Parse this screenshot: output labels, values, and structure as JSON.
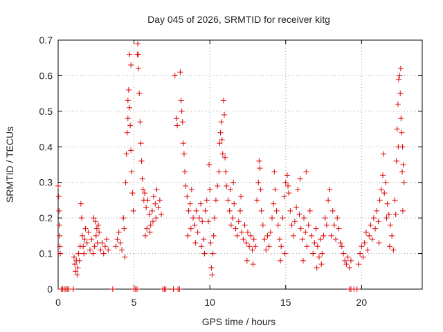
{
  "chart_data": {
    "type": "scatter",
    "title": "Day 045 of 2026, SRMTID for receiver kitg",
    "xlabel": "GPS time / hours",
    "ylabel": "SRMTID / TECUs",
    "xlim": [
      0,
      24
    ],
    "ylim": [
      0,
      0.7
    ],
    "xticks": [
      0,
      5,
      10,
      15,
      20
    ],
    "yticks": [
      0,
      0.1,
      0.2,
      0.3,
      0.4,
      0.5,
      0.6,
      0.7
    ],
    "xtick_labels": [
      "0",
      "5",
      "10",
      "15",
      "20"
    ],
    "ytick_labels": [
      "0",
      "0.1",
      "0.2",
      "0.3",
      "0.4",
      "0.5",
      "0.6",
      "0.7"
    ],
    "grid": true,
    "series": [
      {
        "name": "SRMTID",
        "marker": "+",
        "color": "#dd0000",
        "points": [
          [
            0.0,
            0.29
          ],
          [
            0.03,
            0.26
          ],
          [
            0.06,
            0.22
          ],
          [
            0.08,
            0.18
          ],
          [
            0.1,
            0.15
          ],
          [
            0.12,
            0.12
          ],
          [
            0.14,
            0.1
          ],
          [
            0.2,
            0.0
          ],
          [
            0.3,
            0.0
          ],
          [
            0.4,
            0.0
          ],
          [
            0.5,
            0.0
          ],
          [
            0.6,
            0.0
          ],
          [
            0.7,
            0.0
          ],
          [
            1.0,
            0.0
          ],
          [
            1.05,
            0.09
          ],
          [
            1.1,
            0.07
          ],
          [
            1.15,
            0.05
          ],
          [
            1.2,
            0.08
          ],
          [
            1.25,
            0.04
          ],
          [
            1.3,
            0.06
          ],
          [
            1.35,
            0.1
          ],
          [
            1.4,
            0.08
          ],
          [
            1.45,
            0.12
          ],
          [
            1.5,
            0.24
          ],
          [
            1.55,
            0.2
          ],
          [
            1.6,
            0.15
          ],
          [
            1.65,
            0.12
          ],
          [
            1.7,
            0.1
          ],
          [
            1.75,
            0.14
          ],
          [
            1.8,
            0.17
          ],
          [
            1.9,
            0.13
          ],
          [
            2.0,
            0.16
          ],
          [
            2.1,
            0.11
          ],
          [
            2.2,
            0.14
          ],
          [
            2.3,
            0.1
          ],
          [
            2.4,
            0.12
          ],
          [
            2.5,
            0.15
          ],
          [
            2.6,
            0.13
          ],
          [
            2.7,
            0.16
          ],
          [
            2.8,
            0.11
          ],
          [
            2.9,
            0.13
          ],
          [
            3.0,
            0.1
          ],
          [
            3.1,
            0.12
          ],
          [
            3.2,
            0.14
          ],
          [
            3.3,
            0.11
          ],
          [
            2.35,
            0.2
          ],
          [
            2.45,
            0.19
          ],
          [
            2.55,
            0.17
          ],
          [
            2.65,
            0.18
          ],
          [
            3.6,
            0.0
          ],
          [
            3.8,
            0.12
          ],
          [
            3.9,
            0.14
          ],
          [
            4.0,
            0.16
          ],
          [
            4.1,
            0.13
          ],
          [
            4.2,
            0.11
          ],
          [
            4.3,
            0.2
          ],
          [
            4.35,
            0.17
          ],
          [
            4.4,
            0.09
          ],
          [
            4.45,
            0.3
          ],
          [
            4.5,
            0.38
          ],
          [
            4.55,
            0.44
          ],
          [
            4.6,
            0.53
          ],
          [
            4.65,
            0.56
          ],
          [
            4.7,
            0.51
          ],
          [
            4.75,
            0.46
          ],
          [
            4.8,
            0.39
          ],
          [
            4.85,
            0.33
          ],
          [
            4.9,
            0.27
          ],
          [
            4.95,
            0.22
          ],
          [
            4.7,
            0.66
          ],
          [
            4.8,
            0.63
          ],
          [
            4.6,
            0.48
          ],
          [
            5.0,
            0.0
          ],
          [
            5.1,
            0.0
          ],
          [
            5.2,
            0.0
          ],
          [
            5.22,
            0.66
          ],
          [
            5.25,
            0.69
          ],
          [
            5.28,
            0.66
          ],
          [
            5.3,
            0.62
          ],
          [
            5.35,
            0.55
          ],
          [
            5.4,
            0.47
          ],
          [
            5.45,
            0.41
          ],
          [
            5.5,
            0.36
          ],
          [
            5.55,
            0.31
          ],
          [
            5.6,
            0.28
          ],
          [
            5.65,
            0.25
          ],
          [
            5.7,
            0.27
          ],
          [
            5.8,
            0.23
          ],
          [
            5.9,
            0.25
          ],
          [
            6.0,
            0.21
          ],
          [
            6.1,
            0.18
          ],
          [
            6.2,
            0.22
          ],
          [
            6.3,
            0.26
          ],
          [
            6.4,
            0.24
          ],
          [
            6.5,
            0.28
          ],
          [
            6.6,
            0.23
          ],
          [
            6.7,
            0.25
          ],
          [
            6.8,
            0.21
          ],
          [
            5.75,
            0.15
          ],
          [
            5.85,
            0.17
          ],
          [
            6.05,
            0.16
          ],
          [
            6.25,
            0.19
          ],
          [
            6.45,
            0.2
          ],
          [
            6.9,
            0.0
          ],
          [
            7.0,
            0.0
          ],
          [
            7.1,
            0.0
          ],
          [
            7.6,
            0.0
          ],
          [
            7.9,
            0.0
          ],
          [
            8.0,
            0.0
          ],
          [
            7.7,
            0.6
          ],
          [
            7.8,
            0.48
          ],
          [
            7.85,
            0.46
          ],
          [
            8.05,
            0.61
          ],
          [
            8.1,
            0.53
          ],
          [
            8.15,
            0.5
          ],
          [
            8.2,
            0.47
          ],
          [
            8.25,
            0.41
          ],
          [
            8.3,
            0.38
          ],
          [
            8.35,
            0.33
          ],
          [
            8.4,
            0.29
          ],
          [
            8.5,
            0.26
          ],
          [
            8.6,
            0.22
          ],
          [
            8.7,
            0.24
          ],
          [
            8.8,
            0.28
          ],
          [
            8.9,
            0.2
          ],
          [
            9.0,
            0.18
          ],
          [
            9.1,
            0.22
          ],
          [
            9.2,
            0.16
          ],
          [
            9.3,
            0.2
          ],
          [
            9.4,
            0.24
          ],
          [
            9.5,
            0.19
          ],
          [
            9.6,
            0.14
          ],
          [
            9.7,
            0.22
          ],
          [
            9.8,
            0.25
          ],
          [
            9.9,
            0.19
          ],
          [
            8.55,
            0.15
          ],
          [
            8.75,
            0.17
          ],
          [
            9.05,
            0.13
          ],
          [
            9.45,
            0.12
          ],
          [
            9.65,
            0.1
          ],
          [
            9.95,
            0.35
          ],
          [
            10.0,
            0.28
          ],
          [
            10.05,
            0.13
          ],
          [
            10.1,
            0.06
          ],
          [
            10.15,
            0.04
          ],
          [
            10.2,
            0.1
          ],
          [
            10.25,
            0.15
          ],
          [
            10.3,
            0.2
          ],
          [
            10.4,
            0.25
          ],
          [
            10.5,
            0.29
          ],
          [
            10.6,
            0.33
          ],
          [
            10.65,
            0.41
          ],
          [
            10.7,
            0.44
          ],
          [
            10.75,
            0.47
          ],
          [
            10.8,
            0.42
          ],
          [
            10.85,
            0.38
          ],
          [
            10.9,
            0.53
          ],
          [
            10.95,
            0.49
          ],
          [
            11.0,
            0.37
          ],
          [
            11.05,
            0.33
          ],
          [
            11.1,
            0.29
          ],
          [
            11.2,
            0.25
          ],
          [
            11.3,
            0.22
          ],
          [
            11.4,
            0.18
          ],
          [
            11.5,
            0.2
          ],
          [
            11.6,
            0.24
          ],
          [
            11.7,
            0.17
          ],
          [
            11.8,
            0.15
          ],
          [
            11.9,
            0.19
          ],
          [
            12.0,
            0.22
          ],
          [
            12.1,
            0.16
          ],
          [
            12.2,
            0.14
          ],
          [
            12.3,
            0.18
          ],
          [
            12.4,
            0.13
          ],
          [
            12.5,
            0.16
          ],
          [
            12.6,
            0.12
          ],
          [
            12.7,
            0.15
          ],
          [
            12.8,
            0.11
          ],
          [
            12.9,
            0.14
          ],
          [
            13.0,
            0.12
          ],
          [
            11.35,
            0.28
          ],
          [
            11.55,
            0.3
          ],
          [
            12.05,
            0.26
          ],
          [
            12.45,
            0.08
          ],
          [
            12.85,
            0.07
          ],
          [
            13.1,
            0.25
          ],
          [
            13.2,
            0.3
          ],
          [
            13.25,
            0.36
          ],
          [
            13.3,
            0.34
          ],
          [
            13.35,
            0.28
          ],
          [
            13.4,
            0.22
          ],
          [
            13.5,
            0.18
          ],
          [
            13.6,
            0.14
          ],
          [
            13.7,
            0.11
          ],
          [
            13.8,
            0.15
          ],
          [
            13.9,
            0.12
          ],
          [
            14.0,
            0.16
          ],
          [
            14.1,
            0.2
          ],
          [
            14.2,
            0.24
          ],
          [
            14.3,
            0.28
          ],
          [
            14.4,
            0.22
          ],
          [
            14.5,
            0.18
          ],
          [
            14.6,
            0.14
          ],
          [
            14.7,
            0.12
          ],
          [
            14.8,
            0.2
          ],
          [
            14.9,
            0.26
          ],
          [
            15.0,
            0.3
          ],
          [
            15.1,
            0.32
          ],
          [
            15.2,
            0.27
          ],
          [
            15.3,
            0.22
          ],
          [
            14.25,
            0.33
          ],
          [
            14.65,
            0.08
          ],
          [
            14.95,
            0.1
          ],
          [
            15.15,
            0.29
          ],
          [
            15.4,
            0.18
          ],
          [
            15.5,
            0.15
          ],
          [
            15.6,
            0.19
          ],
          [
            15.7,
            0.23
          ],
          [
            15.8,
            0.28
          ],
          [
            15.9,
            0.21
          ],
          [
            16.0,
            0.17
          ],
          [
            16.1,
            0.14
          ],
          [
            16.2,
            0.2
          ],
          [
            16.3,
            0.16
          ],
          [
            16.4,
            0.12
          ],
          [
            16.5,
            0.18
          ],
          [
            16.6,
            0.22
          ],
          [
            16.7,
            0.15
          ],
          [
            16.8,
            0.1
          ],
          [
            16.9,
            0.13
          ],
          [
            17.0,
            0.17
          ],
          [
            17.1,
            0.12
          ],
          [
            17.2,
            0.09
          ],
          [
            17.3,
            0.14
          ],
          [
            17.4,
            0.1
          ],
          [
            17.5,
            0.15
          ],
          [
            17.6,
            0.2
          ],
          [
            17.7,
            0.18
          ],
          [
            17.8,
            0.25
          ],
          [
            17.9,
            0.28
          ],
          [
            15.95,
            0.31
          ],
          [
            16.15,
            0.08
          ],
          [
            16.35,
            0.33
          ],
          [
            17.05,
            0.06
          ],
          [
            17.35,
            0.07
          ],
          [
            18.0,
            0.15
          ],
          [
            18.1,
            0.22
          ],
          [
            18.2,
            0.18
          ],
          [
            18.3,
            0.14
          ],
          [
            18.4,
            0.2
          ],
          [
            18.5,
            0.17
          ],
          [
            18.6,
            0.13
          ],
          [
            18.7,
            0.12
          ],
          [
            18.8,
            0.1
          ],
          [
            18.9,
            0.08
          ],
          [
            19.0,
            0.07
          ],
          [
            19.1,
            0.09
          ],
          [
            19.2,
            0.06
          ],
          [
            19.3,
            0.08
          ],
          [
            19.2,
            0.0
          ],
          [
            19.3,
            0.0
          ],
          [
            19.5,
            0.0
          ],
          [
            19.7,
            0.0
          ],
          [
            19.8,
            0.07
          ],
          [
            19.9,
            0.1
          ],
          [
            20.0,
            0.12
          ],
          [
            20.1,
            0.09
          ],
          [
            20.2,
            0.13
          ],
          [
            20.3,
            0.16
          ],
          [
            20.4,
            0.11
          ],
          [
            20.5,
            0.15
          ],
          [
            20.6,
            0.18
          ],
          [
            20.7,
            0.14
          ],
          [
            20.8,
            0.2
          ],
          [
            20.9,
            0.17
          ],
          [
            21.0,
            0.22
          ],
          [
            21.1,
            0.19
          ],
          [
            21.2,
            0.25
          ],
          [
            21.3,
            0.28
          ],
          [
            21.4,
            0.32
          ],
          [
            21.5,
            0.27
          ],
          [
            21.6,
            0.3
          ],
          [
            21.7,
            0.24
          ],
          [
            21.8,
            0.21
          ],
          [
            21.9,
            0.18
          ],
          [
            22.0,
            0.15
          ],
          [
            22.1,
            0.11
          ],
          [
            21.15,
            0.13
          ],
          [
            21.45,
            0.38
          ],
          [
            21.65,
            0.2
          ],
          [
            21.85,
            0.12
          ],
          [
            22.2,
            0.25
          ],
          [
            22.25,
            0.21
          ],
          [
            22.3,
            0.36
          ],
          [
            22.35,
            0.45
          ],
          [
            22.4,
            0.52
          ],
          [
            22.45,
            0.59
          ],
          [
            22.5,
            0.6
          ],
          [
            22.55,
            0.55
          ],
          [
            22.6,
            0.48
          ],
          [
            22.65,
            0.44
          ],
          [
            22.7,
            0.4
          ],
          [
            22.75,
            0.35
          ],
          [
            22.8,
            0.3
          ],
          [
            22.42,
            0.4
          ],
          [
            22.58,
            0.62
          ],
          [
            22.68,
            0.33
          ],
          [
            22.72,
            0.22
          ]
        ]
      }
    ]
  }
}
